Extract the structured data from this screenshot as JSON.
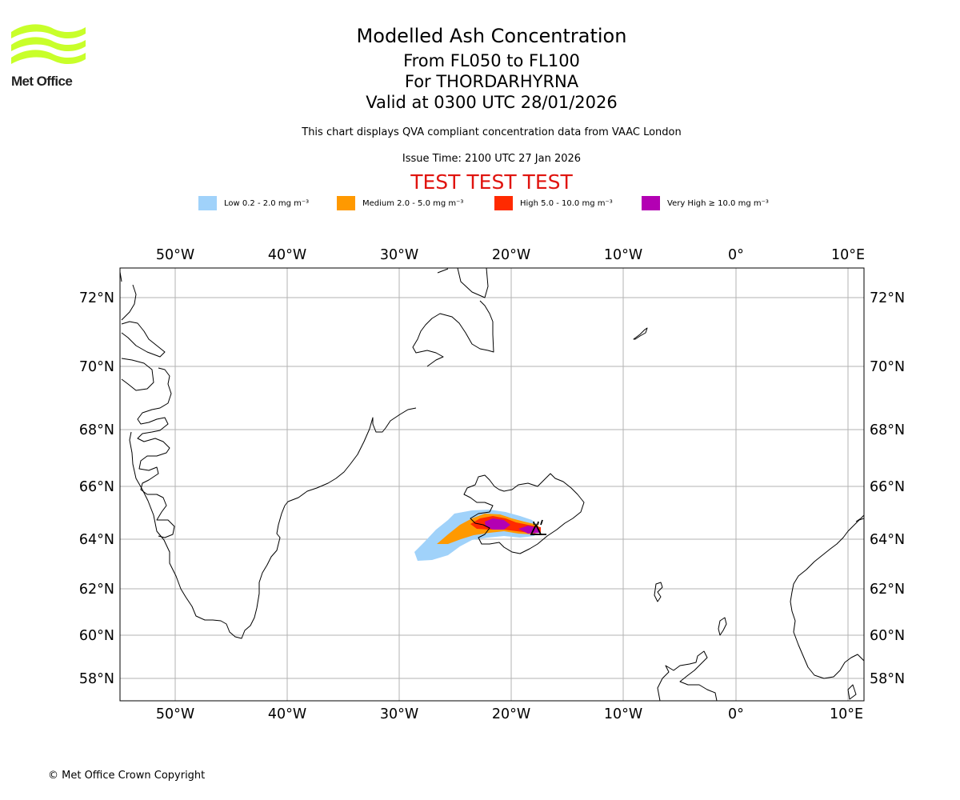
{
  "header": {
    "logo_text": "Met Office",
    "title": "Modelled Ash Concentration",
    "levels": "From FL050 to FL100",
    "volcano": "For THORDARHYRNA",
    "valid": "Valid at 0300 UTC 28/01/2026",
    "description": "This chart displays QVA compliant concentration data from VAAC London",
    "issue_time": "Issue Time: 2100 UTC 27 Jan 2026",
    "test_banner": "TEST TEST TEST"
  },
  "legend": [
    {
      "label": "Low 0.2 - 2.0 mg m⁻³",
      "color": "#a0d2fa"
    },
    {
      "label": "Medium 2.0 - 5.0 mg m⁻³",
      "color": "#ff9900"
    },
    {
      "label": "High 5.0 - 10.0 mg m⁻³",
      "color": "#ff2a00"
    },
    {
      "label": "Very High  ≥  10.0 mg m⁻³",
      "color": "#b300b3"
    }
  ],
  "map": {
    "lon_labels": [
      "50°W",
      "40°W",
      "30°W",
      "20°W",
      "10°W",
      "0°",
      "10°E"
    ],
    "lat_labels": [
      "72°N",
      "70°N",
      "68°N",
      "66°N",
      "64°N",
      "62°N",
      "60°N",
      "58°N"
    ],
    "volcano_symbol": "volcano-triangle-icon"
  },
  "footer": {
    "copyright": "© Met Office Crown Copyright"
  }
}
